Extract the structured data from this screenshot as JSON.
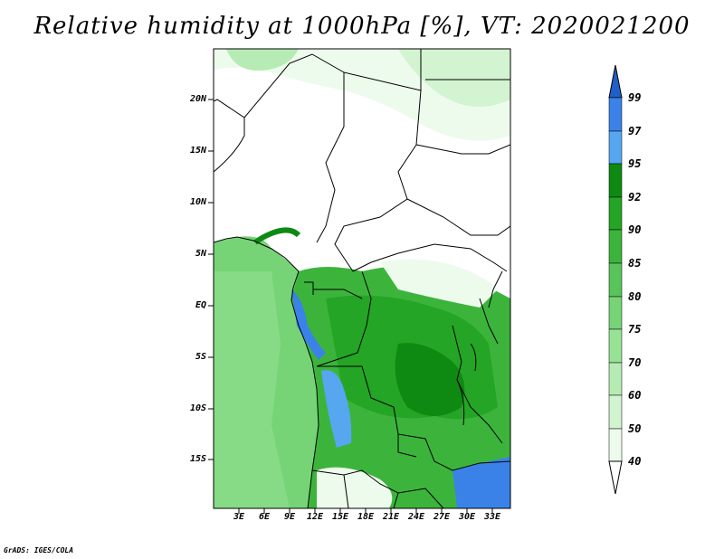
{
  "title": "Relative humidity at 1000hPa [%], VT: 2020021200",
  "credit": "GrADS: IGES/COLA",
  "map": {
    "lat_labels": [
      "20N",
      "15N",
      "10N",
      "5N",
      "EQ",
      "5S",
      "10S",
      "15S"
    ],
    "lon_labels": [
      "3E",
      "6E",
      "9E",
      "12E",
      "15E",
      "18E",
      "21E",
      "24E",
      "27E",
      "30E",
      "33E"
    ]
  },
  "colorbar": {
    "labels": [
      "99",
      "97",
      "95",
      "92",
      "90",
      "85",
      "80",
      "75",
      "70",
      "60",
      "50",
      "40"
    ],
    "colors": [
      "#1f5fc8",
      "#3a82e8",
      "#57a6f0",
      "#0e8a12",
      "#24a525",
      "#3cb43c",
      "#58c45a",
      "#76d476",
      "#98e296",
      "#b6ecb4",
      "#d2f4d0",
      "#edfbec"
    ]
  }
}
